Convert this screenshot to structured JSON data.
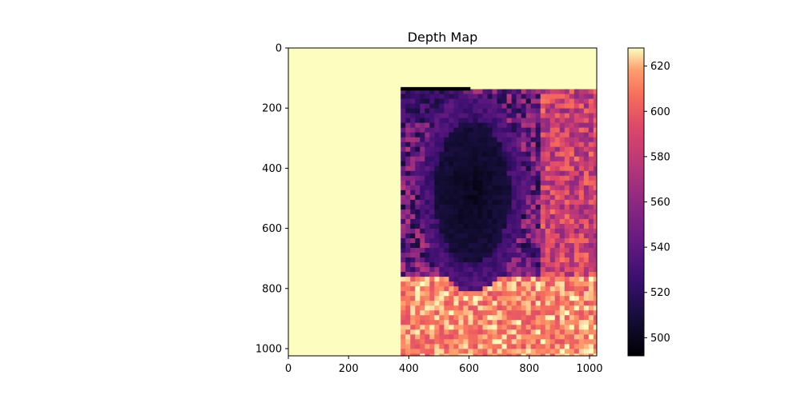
{
  "chart_data": {
    "type": "heatmap",
    "title": "Depth Map",
    "colormap": "magma",
    "x_ticks": [
      "0",
      "200",
      "400",
      "600",
      "800",
      "1000"
    ],
    "y_ticks": [
      "0",
      "200",
      "400",
      "600",
      "800",
      "1000"
    ],
    "x_range": [
      0,
      1024
    ],
    "y_range": [
      0,
      1024
    ],
    "colorbar": {
      "ticks": [
        "500",
        "520",
        "540",
        "560",
        "580",
        "600",
        "620"
      ],
      "range": [
        492,
        628
      ]
    },
    "regions": {
      "background_value": 628,
      "data_region_x": [
        373,
        1024
      ],
      "data_region_y_top": 137,
      "head_center": [
        610,
        480
      ],
      "head_value": 500,
      "head_edge_value": 525,
      "background_far_value": 585,
      "shoulders_value": 612
    }
  }
}
